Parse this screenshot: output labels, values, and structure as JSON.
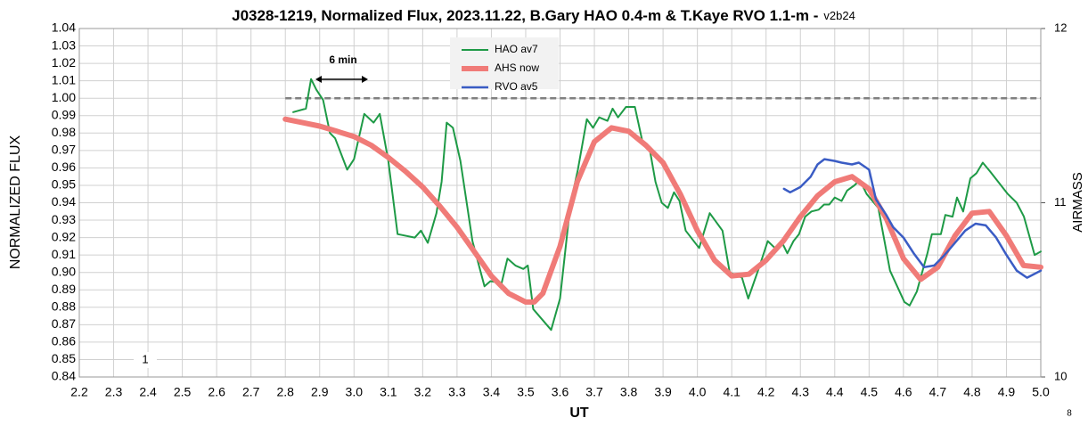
{
  "chart_data": {
    "type": "line",
    "title": "J0328-1219, Normalized Flux, 2023.11.22, B.Gary HAO 0.4-m & T.Kaye RVO 1.1-m -",
    "subtitle": "v2b24",
    "x_label": "UT",
    "y_label": "NORMALIZED FLUX",
    "y2_label": "AIRMASS",
    "xlim": [
      2.2,
      5.0
    ],
    "ylim": [
      0.84,
      1.04
    ],
    "y2lim": [
      10,
      12
    ],
    "xticks": [
      2.2,
      2.3,
      2.4,
      2.5,
      2.6,
      2.7,
      2.8,
      2.9,
      {
        "value": 3,
        "label": "3.0"
      },
      3.1,
      3.2,
      3.3,
      3.4,
      3.5,
      3.6,
      3.7,
      3.8,
      3.9,
      {
        "value": 4,
        "label": "4.0"
      },
      4.1,
      4.2,
      4.3,
      4.4,
      4.5,
      4.6,
      4.7,
      4.8,
      4.9,
      {
        "value": 5,
        "label": "5.0"
      }
    ],
    "yticks": [
      0.84,
      0.85,
      0.86,
      0.87,
      0.88,
      0.89,
      {
        "value": 0.9,
        "label": "0.90"
      },
      0.91,
      0.92,
      0.93,
      0.94,
      0.95,
      0.96,
      0.97,
      0.98,
      0.99,
      {
        "value": 1,
        "label": "1.00"
      },
      1.01,
      1.02,
      1.03,
      1.04
    ],
    "y2ticks": [
      10,
      11,
      12
    ],
    "grid": true,
    "legend": "upper center",
    "reference_line": {
      "y": 1,
      "x": [
        2.8,
        5.0
      ],
      "color": "#808080"
    },
    "annotations": [
      "6 min",
      "1",
      "8"
    ],
    "series": [
      {
        "name": "HAO av7",
        "color": "#1e9a46",
        "width": 2,
        "x": [
          2.823,
          2.86,
          2.875,
          2.89,
          2.91,
          2.93,
          2.945,
          2.98,
          3.0,
          3.03,
          3.057,
          3.075,
          3.1,
          3.127,
          3.177,
          3.195,
          3.215,
          3.24,
          3.255,
          3.27,
          3.288,
          3.31,
          3.345,
          3.38,
          3.397,
          3.43,
          3.447,
          3.47,
          3.493,
          3.506,
          3.522,
          3.574,
          3.6,
          3.63,
          3.652,
          3.678,
          3.696,
          3.714,
          3.738,
          3.753,
          3.769,
          3.792,
          3.818,
          3.84,
          3.86,
          3.878,
          3.896,
          3.914,
          3.932,
          3.948,
          3.966,
          4.005,
          4.036,
          4.073,
          4.094,
          4.13,
          4.148,
          4.18,
          4.205,
          4.226,
          4.247,
          4.262,
          4.28,
          4.296,
          4.314,
          4.332,
          4.353,
          4.369,
          4.384,
          4.4,
          4.42,
          4.436,
          4.457,
          4.473,
          4.493,
          4.527,
          4.561,
          4.603,
          4.618,
          4.639,
          4.67,
          4.683,
          4.709,
          4.722,
          4.743,
          4.756,
          4.774,
          4.795,
          4.813,
          4.831,
          4.852,
          4.904,
          4.93,
          4.951,
          4.982,
          5.0
        ],
        "values": [
          0.992,
          0.994,
          1.011,
          1.005,
          0.999,
          0.98,
          0.977,
          0.959,
          0.965,
          0.991,
          0.986,
          0.991,
          0.964,
          0.922,
          0.92,
          0.924,
          0.917,
          0.934,
          0.952,
          0.986,
          0.983,
          0.964,
          0.918,
          0.892,
          0.895,
          0.894,
          0.908,
          0.904,
          0.902,
          0.904,
          0.879,
          0.867,
          0.885,
          0.939,
          0.959,
          0.988,
          0.983,
          0.989,
          0.987,
          0.994,
          0.989,
          0.995,
          0.995,
          0.975,
          0.972,
          0.952,
          0.94,
          0.937,
          0.946,
          0.941,
          0.924,
          0.914,
          0.934,
          0.924,
          0.9,
          0.897,
          0.885,
          0.903,
          0.918,
          0.914,
          0.917,
          0.911,
          0.918,
          0.922,
          0.932,
          0.935,
          0.936,
          0.939,
          0.939,
          0.943,
          0.941,
          0.947,
          0.95,
          0.953,
          0.945,
          0.937,
          0.901,
          0.883,
          0.881,
          0.889,
          0.911,
          0.922,
          0.922,
          0.933,
          0.932,
          0.943,
          0.935,
          0.954,
          0.957,
          0.963,
          0.958,
          0.945,
          0.94,
          0.932,
          0.91,
          0.912
        ]
      },
      {
        "name": "AHS now",
        "color": "#f07b78",
        "width": 6,
        "x": [
          2.8,
          2.85,
          2.9,
          2.95,
          3.0,
          3.05,
          3.1,
          3.15,
          3.2,
          3.25,
          3.3,
          3.35,
          3.4,
          3.45,
          3.5,
          3.525,
          3.55,
          3.6,
          3.65,
          3.7,
          3.75,
          3.8,
          3.85,
          3.9,
          3.95,
          4.0,
          4.05,
          4.1,
          4.15,
          4.2,
          4.25,
          4.3,
          4.35,
          4.4,
          4.45,
          4.5,
          4.55,
          4.6,
          4.65,
          4.7,
          4.75,
          4.8,
          4.85,
          4.9,
          4.95,
          5.0
        ],
        "values": [
          0.988,
          0.986,
          0.984,
          0.981,
          0.978,
          0.973,
          0.966,
          0.958,
          0.949,
          0.938,
          0.926,
          0.912,
          0.898,
          0.888,
          0.883,
          0.883,
          0.888,
          0.915,
          0.952,
          0.975,
          0.983,
          0.981,
          0.973,
          0.963,
          0.945,
          0.924,
          0.907,
          0.898,
          0.899,
          0.907,
          0.918,
          0.932,
          0.944,
          0.952,
          0.955,
          0.948,
          0.931,
          0.908,
          0.896,
          0.903,
          0.921,
          0.934,
          0.935,
          0.921,
          0.904,
          0.903
        ]
      },
      {
        "name": "RVO av5",
        "color": "#3a5cc4",
        "width": 2.5,
        "x": [
          4.252,
          4.27,
          4.3,
          4.33,
          4.35,
          4.37,
          4.4,
          4.42,
          4.45,
          4.47,
          4.5,
          4.52,
          4.55,
          4.57,
          4.6,
          4.63,
          4.66,
          4.69,
          4.72,
          4.75,
          4.78,
          4.81,
          4.84,
          4.87,
          4.9,
          4.93,
          4.96,
          5.0
        ],
        "values": [
          0.948,
          0.946,
          0.949,
          0.955,
          0.962,
          0.965,
          0.964,
          0.963,
          0.962,
          0.963,
          0.959,
          0.942,
          0.933,
          0.926,
          0.92,
          0.911,
          0.903,
          0.904,
          0.91,
          0.917,
          0.924,
          0.928,
          0.927,
          0.92,
          0.91,
          0.901,
          0.897,
          0.901
        ]
      }
    ]
  }
}
